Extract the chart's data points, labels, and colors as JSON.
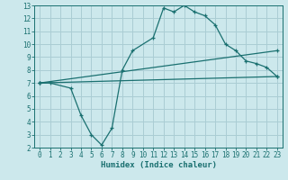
{
  "xlabel": "Humidex (Indice chaleur)",
  "bg_color": "#cce8ec",
  "grid_color": "#aacdd4",
  "line_color": "#1a7070",
  "xlim": [
    -0.5,
    23.5
  ],
  "ylim": [
    2,
    13
  ],
  "xticks": [
    0,
    1,
    2,
    3,
    4,
    5,
    6,
    7,
    8,
    9,
    10,
    11,
    12,
    13,
    14,
    15,
    16,
    17,
    18,
    19,
    20,
    21,
    22,
    23
  ],
  "yticks": [
    2,
    3,
    4,
    5,
    6,
    7,
    8,
    9,
    10,
    11,
    12,
    13
  ],
  "line1_x": [
    0,
    1,
    3,
    4,
    5,
    6,
    7,
    8,
    9,
    11,
    12,
    13,
    14,
    15,
    16,
    17,
    18,
    19,
    20,
    21,
    22,
    23
  ],
  "line1_y": [
    7.0,
    7.0,
    6.6,
    4.5,
    3.0,
    2.2,
    3.5,
    8.0,
    9.5,
    10.5,
    12.8,
    12.5,
    13.0,
    12.5,
    12.2,
    11.5,
    10.0,
    9.5,
    8.7,
    8.5,
    8.2,
    7.5
  ],
  "line2_x": [
    0,
    23
  ],
  "line2_y": [
    7.0,
    9.5
  ],
  "line3_x": [
    0,
    23
  ],
  "line3_y": [
    7.0,
    7.5
  ],
  "tick_fontsize": 5.5,
  "xlabel_fontsize": 6.5
}
